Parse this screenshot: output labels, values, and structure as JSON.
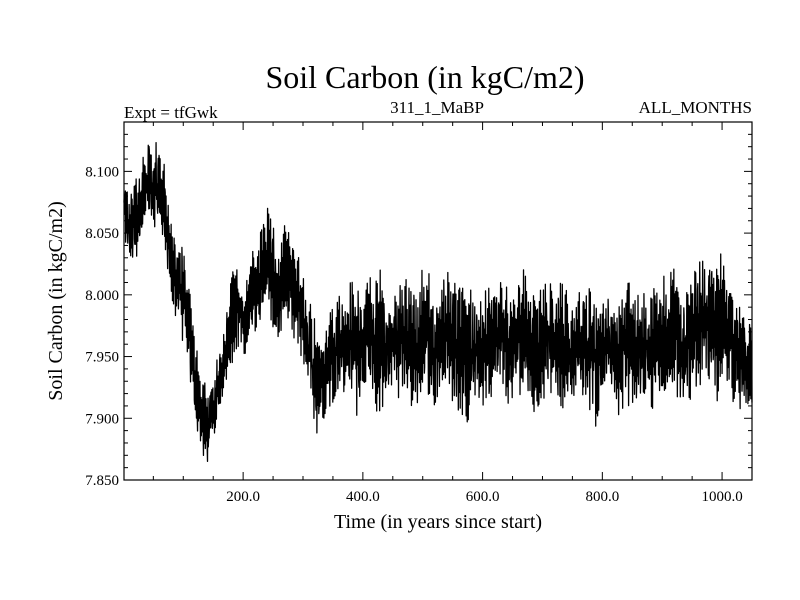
{
  "chart_data": {
    "type": "line",
    "title": "Soil Carbon (in kgC/m2)",
    "subtitle_left": "Expt = tfGwk",
    "subtitle_center": "311_1_MaBP",
    "subtitle_right": "ALL_MONTHS",
    "xlabel": "Time (in years since start)",
    "ylabel": "Soil Carbon (in kgC/m2)",
    "xlim": [
      1,
      1050
    ],
    "ylim": [
      7.85,
      8.14
    ],
    "xticks": [
      200,
      400,
      600,
      800,
      1000
    ],
    "xtick_labels": [
      "200.0",
      "400.0",
      "600.0",
      "800.0",
      "1000.0"
    ],
    "yticks": [
      7.85,
      7.9,
      7.95,
      8.0,
      8.05,
      8.1
    ],
    "ytick_labels": [
      "7.850",
      "7.900",
      "7.950",
      "8.000",
      "8.050",
      "8.100"
    ],
    "grid": false,
    "series": [
      {
        "name": "Soil Carbon",
        "color": "#000000",
        "envelope_x": [
          0,
          10,
          20,
          30,
          40,
          50,
          60,
          70,
          80,
          90,
          100,
          110,
          120,
          130,
          140,
          150,
          160,
          170,
          180,
          190,
          200,
          210,
          220,
          230,
          240,
          250,
          260,
          270,
          280,
          290,
          300,
          310,
          320,
          330,
          340,
          350,
          360,
          370,
          380,
          390,
          400,
          410,
          420,
          430,
          440,
          450,
          460,
          470,
          480,
          490,
          500,
          510,
          520,
          530,
          540,
          550,
          560,
          570,
          580,
          590,
          600,
          610,
          620,
          630,
          640,
          650,
          660,
          670,
          680,
          690,
          700,
          710,
          720,
          730,
          740,
          750,
          760,
          770,
          780,
          790,
          800,
          810,
          820,
          830,
          840,
          850,
          860,
          870,
          880,
          890,
          900,
          910,
          920,
          930,
          940,
          950,
          960,
          970,
          980,
          990,
          1000,
          1010,
          1020,
          1030,
          1040,
          1050
        ],
        "envelope_high": [
          8.105,
          8.08,
          8.1,
          8.11,
          8.135,
          8.12,
          8.13,
          8.11,
          8.06,
          8.055,
          8.04,
          8.01,
          7.97,
          7.935,
          7.93,
          7.935,
          7.96,
          7.985,
          8.02,
          8.03,
          8.005,
          8.03,
          8.045,
          8.055,
          8.08,
          8.06,
          8.03,
          8.06,
          8.05,
          8.04,
          8.02,
          8.0,
          7.99,
          7.975,
          7.98,
          8.0,
          8.01,
          7.995,
          8.015,
          8.02,
          8.005,
          8.02,
          8.01,
          8.025,
          7.995,
          8.0,
          8.02,
          8.015,
          8.02,
          8.0,
          8.025,
          8.02,
          8.0,
          8.015,
          8.025,
          8.01,
          8.02,
          8.025,
          8.015,
          8.0,
          8.015,
          8.02,
          8.005,
          8.02,
          8.01,
          8.0,
          8.02,
          8.025,
          8.01,
          8.0,
          8.015,
          8.02,
          8.005,
          8.015,
          8.01,
          7.99,
          8.0,
          8.02,
          8.01,
          8.005,
          8.02,
          8.01,
          7.995,
          8.0,
          8.02,
          8.015,
          8.0,
          8.01,
          8.0,
          8.02,
          8.025,
          8.01,
          8.03,
          8.005,
          8.02,
          8.02,
          8.03,
          8.04,
          8.035,
          8.025,
          8.04,
          8.02,
          8.0,
          7.99,
          7.98,
          7.975
        ],
        "envelope_low": [
          8.04,
          8.02,
          8.025,
          8.035,
          8.05,
          8.055,
          8.04,
          8.03,
          7.99,
          7.97,
          7.96,
          7.93,
          7.895,
          7.865,
          7.857,
          7.87,
          7.9,
          7.92,
          7.94,
          7.955,
          7.945,
          7.955,
          7.965,
          7.97,
          7.98,
          7.965,
          7.955,
          7.97,
          7.965,
          7.96,
          7.94,
          7.91,
          7.885,
          7.89,
          7.905,
          7.91,
          7.92,
          7.915,
          7.91,
          7.9,
          7.92,
          7.915,
          7.9,
          7.905,
          7.91,
          7.925,
          7.915,
          7.92,
          7.905,
          7.9,
          7.91,
          7.915,
          7.905,
          7.925,
          7.92,
          7.91,
          7.905,
          7.89,
          7.885,
          7.895,
          7.9,
          7.905,
          7.915,
          7.92,
          7.91,
          7.905,
          7.92,
          7.915,
          7.905,
          7.895,
          7.91,
          7.92,
          7.91,
          7.9,
          7.905,
          7.915,
          7.91,
          7.9,
          7.905,
          7.89,
          7.9,
          7.91,
          7.9,
          7.895,
          7.91,
          7.905,
          7.9,
          7.915,
          7.905,
          7.9,
          7.91,
          7.92,
          7.915,
          7.905,
          7.9,
          7.91,
          7.925,
          7.93,
          7.92,
          7.91,
          7.92,
          7.93,
          7.91,
          7.905,
          7.9,
          7.91
        ]
      }
    ]
  }
}
